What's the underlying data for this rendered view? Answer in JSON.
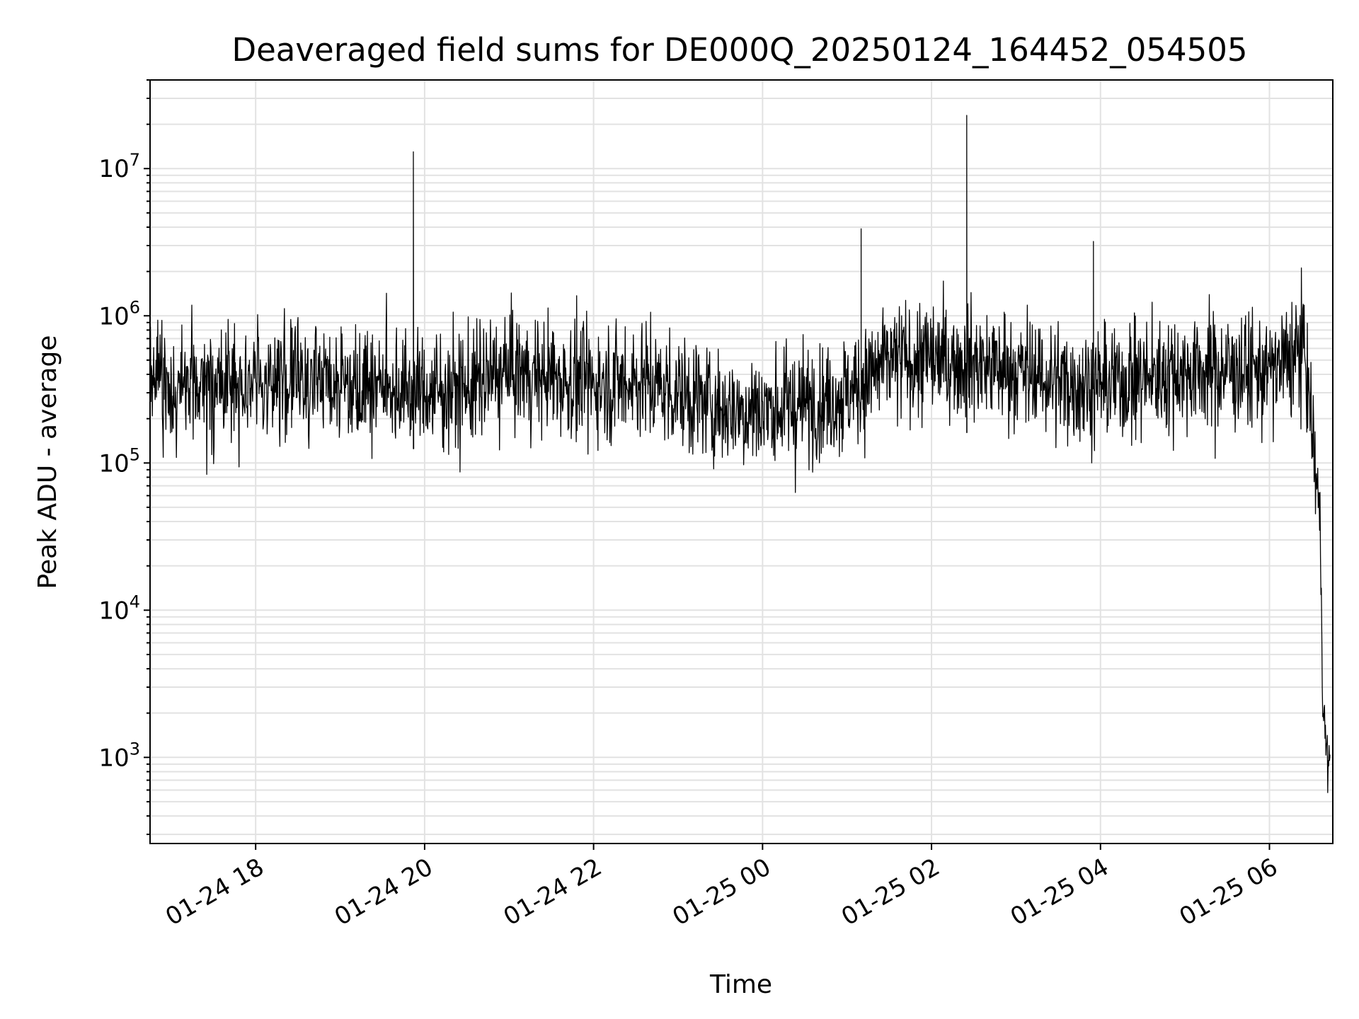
{
  "chart_data": {
    "type": "line",
    "title": "Deaveraged field sums for DE000Q_20250124_164452_054505",
    "xlabel": "Time",
    "ylabel": "Peak ADU - average",
    "yscale": "log",
    "ylim": [
      260,
      40000000
    ],
    "xlim": [
      "2025-01-24 16:45",
      "2025-01-25 06:45"
    ],
    "grid": true,
    "line_color": "#000000",
    "x_ticks": [
      {
        "value": "2025-01-24 18:00",
        "label": "01-24 18"
      },
      {
        "value": "2025-01-24 20:00",
        "label": "01-24 20"
      },
      {
        "value": "2025-01-24 22:00",
        "label": "01-24 22"
      },
      {
        "value": "2025-01-25 00:00",
        "label": "01-25 00"
      },
      {
        "value": "2025-01-25 02:00",
        "label": "01-25 02"
      },
      {
        "value": "2025-01-25 04:00",
        "label": "01-25 04"
      },
      {
        "value": "2025-01-25 06:00",
        "label": "01-25 06"
      }
    ],
    "y_ticks": [
      {
        "value": 1000,
        "base": "10",
        "exp": "3"
      },
      {
        "value": 10000,
        "base": "10",
        "exp": "4"
      },
      {
        "value": 100000,
        "base": "10",
        "exp": "5"
      },
      {
        "value": 1000000,
        "base": "10",
        "exp": "6"
      },
      {
        "value": 10000000,
        "base": "10",
        "exp": "7"
      }
    ],
    "series": [
      {
        "values": [
          [
            "2025-01-24 16:45",
            350000
          ],
          [
            "2025-01-24 17:00",
            310000
          ],
          [
            "2025-01-24 17:30",
            330000
          ],
          [
            "2025-01-24 18:00",
            360000
          ],
          [
            "2025-01-24 18:30",
            380000
          ],
          [
            "2025-01-24 19:00",
            370000
          ],
          [
            "2025-01-24 19:30",
            340000
          ],
          [
            "2025-01-24 19:52",
            13000000
          ],
          [
            "2025-01-24 20:00",
            300000
          ],
          [
            "2025-01-24 20:30",
            320000
          ],
          [
            "2025-01-24 21:00",
            420000
          ],
          [
            "2025-01-24 21:30",
            380000
          ],
          [
            "2025-01-24 22:00",
            350000
          ],
          [
            "2025-01-24 22:30",
            370000
          ],
          [
            "2025-01-24 23:00",
            300000
          ],
          [
            "2025-01-24 23:30",
            240000
          ],
          [
            "2025-01-25 00:00",
            230000
          ],
          [
            "2025-01-25 00:30",
            250000
          ],
          [
            "2025-01-25 01:00",
            300000
          ],
          [
            "2025-01-25 01:10",
            3900000
          ],
          [
            "2025-01-25 01:30",
            480000
          ],
          [
            "2025-01-25 02:00",
            500000
          ],
          [
            "2025-01-25 02:25",
            23000000
          ],
          [
            "2025-01-25 02:30",
            480000
          ],
          [
            "2025-01-25 03:00",
            420000
          ],
          [
            "2025-01-25 03:30",
            360000
          ],
          [
            "2025-01-25 03:55",
            3200000
          ],
          [
            "2025-01-25 04:00",
            340000
          ],
          [
            "2025-01-25 04:30",
            380000
          ],
          [
            "2025-01-25 05:00",
            420000
          ],
          [
            "2025-01-25 05:30",
            430000
          ],
          [
            "2025-01-25 06:00",
            410000
          ],
          [
            "2025-01-25 06:25",
            600000
          ],
          [
            "2025-01-25 06:36",
            40000
          ],
          [
            "2025-01-25 06:38",
            2500
          ],
          [
            "2025-01-25 06:40",
            1200
          ],
          [
            "2025-01-25 06:43",
            750
          ]
        ]
      }
    ]
  }
}
